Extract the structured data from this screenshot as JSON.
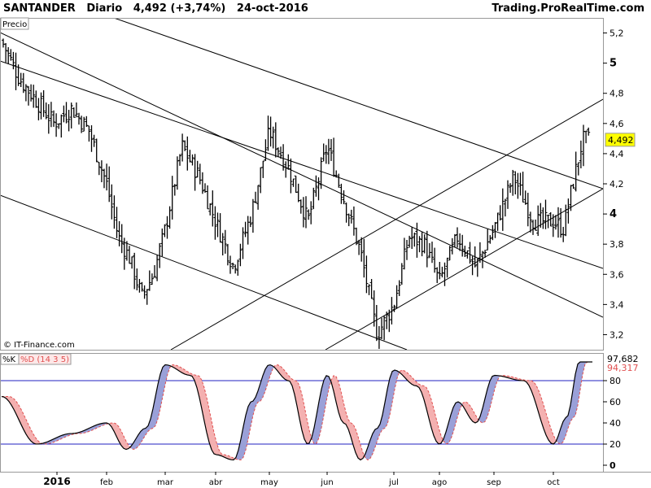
{
  "header": {
    "symbol": "SANTANDER",
    "period": "Diario",
    "price": "4,492",
    "change": "(+3,74%)",
    "date": "24-oct-2016",
    "brand": "Trading.ProRealTime.com"
  },
  "price_panel": {
    "label": "Precio",
    "watermark": "© IT-Finance.com",
    "last_price_label": "4,492",
    "y_ticks": [
      {
        "value": 5.2,
        "label": "5,2",
        "bold": false
      },
      {
        "value": 5.0,
        "label": "5",
        "bold": true
      },
      {
        "value": 4.8,
        "label": "4,8",
        "bold": false
      },
      {
        "value": 4.6,
        "label": "4,6",
        "bold": false
      },
      {
        "value": 4.4,
        "label": "4,4",
        "bold": false
      },
      {
        "value": 4.2,
        "label": "4,2",
        "bold": false
      },
      {
        "value": 4.0,
        "label": "4",
        "bold": true
      },
      {
        "value": 3.8,
        "label": "3,8",
        "bold": false
      },
      {
        "value": 3.6,
        "label": "3,6",
        "bold": false
      },
      {
        "value": 3.4,
        "label": "3,4",
        "bold": false
      },
      {
        "value": 3.2,
        "label": "3,2",
        "bold": false
      }
    ]
  },
  "stoch_panel": {
    "k_label": "%K",
    "d_label": "%D (14 3 5)",
    "k_value": "97,682",
    "d_value": "94,317",
    "y_ticks": [
      {
        "value": 80,
        "label": "80"
      },
      {
        "value": 60,
        "label": "60"
      },
      {
        "value": 40,
        "label": "40"
      },
      {
        "value": 20,
        "label": "20"
      },
      {
        "value": 0,
        "label": "0"
      }
    ],
    "levels": [
      80,
      20
    ]
  },
  "x_axis": {
    "labels": [
      {
        "key": "2016",
        "label": "2016",
        "bold": true
      },
      {
        "key": "feb",
        "label": "feb",
        "bold": false
      },
      {
        "key": "mar",
        "label": "mar",
        "bold": false
      },
      {
        "key": "abr",
        "label": "abr",
        "bold": false
      },
      {
        "key": "may",
        "label": "may",
        "bold": false
      },
      {
        "key": "jun",
        "label": "jun",
        "bold": false
      },
      {
        "key": "jul",
        "label": "jul",
        "bold": false
      },
      {
        "key": "ago",
        "label": "ago",
        "bold": false
      },
      {
        "key": "sep",
        "label": "sep",
        "bold": false
      },
      {
        "key": "oct",
        "label": "oct",
        "bold": false
      }
    ]
  },
  "colors": {
    "bar": "#000000",
    "k_line": "#000000",
    "d_line": "#e05050",
    "fill_up": "#9aa0d8",
    "fill_down": "#f4b0b0",
    "level_line": "#2020c0",
    "last_price_bg": "#ffff00"
  },
  "chart_data": [
    {
      "type": "ohlc",
      "title": "SANTANDER Diario",
      "ylabel": "Precio",
      "ylim": [
        3.1,
        5.3
      ],
      "x": [
        "2016",
        "feb",
        "mar",
        "abr",
        "may",
        "jun",
        "jul",
        "ago",
        "sep",
        "oct"
      ],
      "close_path": [
        [
          "2016",
          5.15
        ],
        [
          "2016",
          4.9
        ],
        [
          "2016",
          4.75
        ],
        [
          "2016",
          4.6
        ],
        [
          "2016",
          4.7
        ],
        [
          "2016",
          4.55
        ],
        [
          "feb",
          4.2
        ],
        [
          "feb",
          3.85
        ],
        [
          "feb",
          3.7
        ],
        [
          "feb",
          3.45
        ],
        [
          "feb",
          3.6
        ],
        [
          "mar",
          3.9
        ],
        [
          "mar",
          4.45
        ],
        [
          "mar",
          4.25
        ],
        [
          "abr",
          3.95
        ],
        [
          "abr",
          3.65
        ],
        [
          "abr",
          4.0
        ],
        [
          "may",
          4.55
        ],
        [
          "may",
          4.3
        ],
        [
          "may",
          3.95
        ],
        [
          "jun",
          4.45
        ],
        [
          "jun",
          4.1
        ],
        [
          "jun",
          3.75
        ],
        [
          "jun",
          3.2
        ],
        [
          "jul",
          3.4
        ],
        [
          "jul",
          3.85
        ],
        [
          "jul",
          3.8
        ],
        [
          "ago",
          3.55
        ],
        [
          "ago",
          3.85
        ],
        [
          "ago",
          3.65
        ],
        [
          "sep",
          3.9
        ],
        [
          "sep",
          4.25
        ],
        [
          "sep",
          3.95
        ],
        [
          "oct",
          3.95
        ],
        [
          "oct",
          3.9
        ],
        [
          "oct",
          4.2
        ],
        [
          "oct",
          4.492
        ]
      ],
      "last": 4.492,
      "change_pct": 3.74
    },
    {
      "type": "line",
      "title": "%K %D (14 3 5)",
      "ylim": [
        0,
        100
      ],
      "series": [
        {
          "name": "%K",
          "last": 97.682
        },
        {
          "name": "%D",
          "last": 94.317
        }
      ],
      "k_path": [
        [
          "2016",
          65
        ],
        [
          "2016",
          20
        ],
        [
          "2016",
          30
        ],
        [
          "feb",
          40
        ],
        [
          "feb",
          15
        ],
        [
          "feb",
          35
        ],
        [
          "mar",
          95
        ],
        [
          "mar",
          85
        ],
        [
          "abr",
          10
        ],
        [
          "abr",
          5
        ],
        [
          "abr",
          60
        ],
        [
          "may",
          95
        ],
        [
          "may",
          80
        ],
        [
          "may",
          20
        ],
        [
          "jun",
          85
        ],
        [
          "jun",
          40
        ],
        [
          "jun",
          5
        ],
        [
          "jun",
          35
        ],
        [
          "jul",
          90
        ],
        [
          "jul",
          75
        ],
        [
          "ago",
          20
        ],
        [
          "ago",
          60
        ],
        [
          "ago",
          40
        ],
        [
          "sep",
          85
        ],
        [
          "sep",
          80
        ],
        [
          "oct",
          20
        ],
        [
          "oct",
          45
        ],
        [
          "oct",
          97.682
        ]
      ]
    }
  ]
}
